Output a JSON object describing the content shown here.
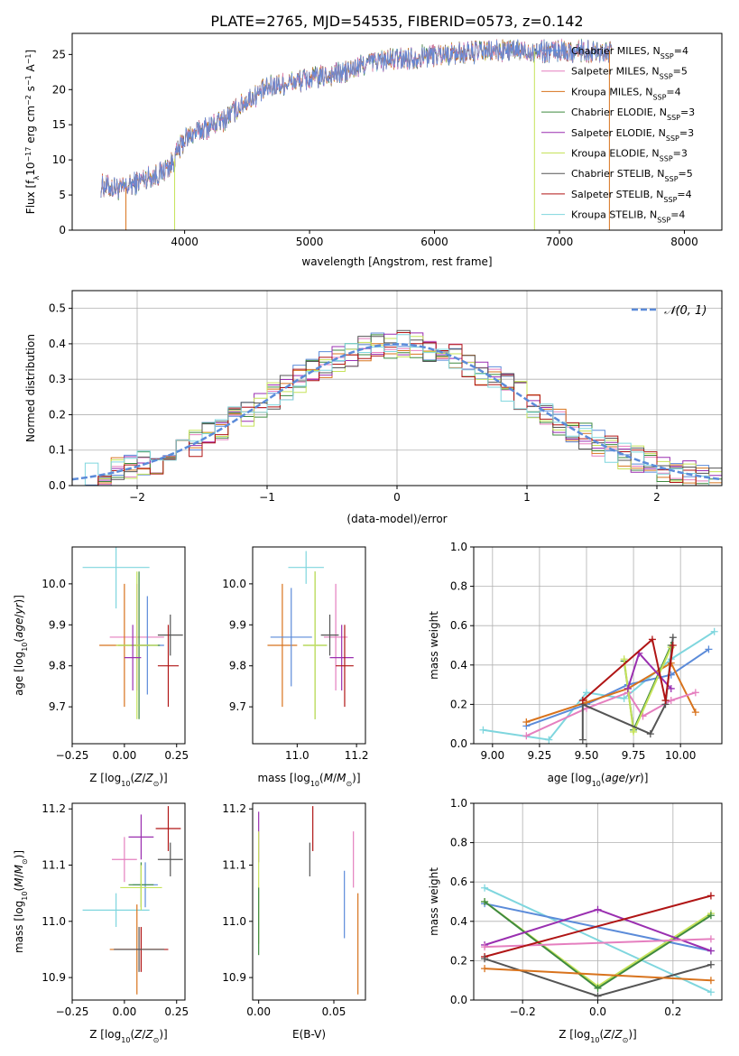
{
  "colors": {
    "Chabrier MILES": "#5b8bd9",
    "Salpeter MILES": "#e57fbf",
    "Kroupa MILES": "#d8731d",
    "Chabrier ELODIE": "#3f8a3f",
    "Salpeter ELODIE": "#9a2fb0",
    "Kroupa ELODIE": "#c6e35a",
    "Chabrier STELIB": "#555555",
    "Salpeter STELIB": "#b01515",
    "Kroupa STELIB": "#7fd6de",
    "normal": "#5b8bd9"
  },
  "chart_data": [
    {
      "id": "spectrum",
      "type": "line",
      "title": "PLATE=2765, MJD=54535, FIBERID=0573, z=0.142",
      "xlabel": "wavelength [Angstrom, rest frame]",
      "ylabel": "Flux [f_λ 10^-17 erg cm^-2 s^-1 A^-1]",
      "xlim": [
        3100,
        8300
      ],
      "ylim": [
        0,
        28
      ],
      "xticks": [
        4000,
        5000,
        6000,
        7000,
        8000
      ],
      "yticks": [
        0,
        5,
        10,
        15,
        20,
        25
      ],
      "legend_position": "top-right",
      "series": [
        {
          "name": "Chabrier MILES",
          "nssp": "4"
        },
        {
          "name": "Salpeter MILES",
          "nssp": "5"
        },
        {
          "name": "Kroupa MILES",
          "nssp": "4"
        },
        {
          "name": "Chabrier ELODIE",
          "nssp": "3"
        },
        {
          "name": "Salpeter ELODIE",
          "nssp": "3"
        },
        {
          "name": "Kroupa ELODIE",
          "nssp": "3"
        },
        {
          "name": "Chabrier STELIB",
          "nssp": "5"
        },
        {
          "name": "Salpeter STELIB",
          "nssp": "4"
        },
        {
          "name": "Kroupa STELIB",
          "nssp": "4"
        }
      ],
      "continuum": {
        "x": [
          3300,
          3500,
          3700,
          3800,
          3900,
          4000,
          4100,
          4300,
          4500,
          4700,
          5000,
          5300,
          5500,
          5800,
          6000,
          6500,
          7000,
          7400
        ],
        "y": [
          6.5,
          5.8,
          7.5,
          8.0,
          9.5,
          13.0,
          14.0,
          15.5,
          18.5,
          20.5,
          21.5,
          22.5,
          24.0,
          24.5,
          25.0,
          25.5,
          25.5,
          25.5
        ]
      }
    },
    {
      "id": "residuals",
      "type": "line",
      "xlabel": "(data-model)/error",
      "ylabel": "Normed distribution",
      "xlim": [
        -2.5,
        2.5
      ],
      "ylim": [
        0,
        0.55
      ],
      "xticks": [
        -2,
        -1,
        0,
        1,
        2
      ],
      "yticks": [
        0.0,
        0.1,
        0.2,
        0.3,
        0.4,
        0.5
      ],
      "grid": true,
      "legend_position": "top-right",
      "legend_label": "𝒩(0, 1)",
      "bin_width": 0.1,
      "bin_start": -2.5
    },
    {
      "id": "z-age",
      "type": "scatter",
      "xlabel": "Z [log10(Z/Z⊙)]",
      "ylabel": "age [log10(age/yr)]",
      "xlim": [
        -0.25,
        0.29
      ],
      "ylim": [
        9.61,
        10.09
      ],
      "xticks": [
        -0.25,
        0.0,
        0.25
      ],
      "yticks": [
        9.7,
        9.8,
        9.9,
        10.0
      ],
      "points": [
        {
          "model": "Kroupa STELIB",
          "x": -0.04,
          "y": 10.04,
          "xerr": 0.16,
          "yerr": 0.1
        },
        {
          "model": "Salpeter MILES",
          "x": 0.06,
          "y": 9.87,
          "xerr": 0.13,
          "yerr": 0.13
        },
        {
          "model": "Kroupa MILES",
          "x": 0.0,
          "y": 9.85,
          "xerr": 0.12,
          "yerr": 0.15
        },
        {
          "model": "Chabrier MILES",
          "x": 0.11,
          "y": 9.85,
          "xerr": 0.08,
          "yerr": 0.12
        },
        {
          "model": "Chabrier ELODIE",
          "x": 0.07,
          "y": 9.85,
          "xerr": 0.1,
          "yerr": 0.18
        },
        {
          "model": "Kroupa ELODIE",
          "x": 0.06,
          "y": 9.85,
          "xerr": 0.1,
          "yerr": 0.18
        },
        {
          "model": "Salpeter ELODIE",
          "x": 0.04,
          "y": 9.82,
          "xerr": 0.04,
          "yerr": 0.08
        },
        {
          "model": "Chabrier STELIB",
          "x": 0.22,
          "y": 9.875,
          "xerr": 0.06,
          "yerr": 0.05
        },
        {
          "model": "Salpeter STELIB",
          "x": 0.21,
          "y": 9.8,
          "xerr": 0.05,
          "yerr": 0.1
        }
      ]
    },
    {
      "id": "mass-age",
      "type": "scatter",
      "xlabel": "mass [log10(M/M⊙)]",
      "xlim": [
        10.85,
        11.23
      ],
      "ylim": [
        9.61,
        10.09
      ],
      "xticks": [
        11.0,
        11.2
      ],
      "yticks": [
        9.7,
        9.8,
        9.9,
        10.0
      ],
      "points": [
        {
          "model": "Kroupa STELIB",
          "x": 11.03,
          "y": 10.04,
          "xerr": 0.06,
          "yerr": 0.04
        },
        {
          "model": "Salpeter MILES",
          "x": 11.13,
          "y": 9.87,
          "xerr": 0.04,
          "yerr": 0.13
        },
        {
          "model": "Kroupa MILES",
          "x": 10.95,
          "y": 9.85,
          "xerr": 0.05,
          "yerr": 0.15
        },
        {
          "model": "Chabrier MILES",
          "x": 10.98,
          "y": 9.87,
          "xerr": 0.07,
          "yerr": 0.12
        },
        {
          "model": "Chabrier ELODIE",
          "x": 11.06,
          "y": 9.85,
          "xerr": 0.04,
          "yerr": 0.18
        },
        {
          "model": "Kroupa ELODIE",
          "x": 11.06,
          "y": 9.85,
          "xerr": 0.04,
          "yerr": 0.18
        },
        {
          "model": "Salpeter ELODIE",
          "x": 11.15,
          "y": 9.82,
          "xerr": 0.04,
          "yerr": 0.08
        },
        {
          "model": "Chabrier STELIB",
          "x": 11.11,
          "y": 9.875,
          "xerr": 0.03,
          "yerr": 0.05
        },
        {
          "model": "Salpeter STELIB",
          "x": 11.16,
          "y": 9.8,
          "xerr": 0.03,
          "yerr": 0.1
        }
      ]
    },
    {
      "id": "age-weight",
      "type": "line",
      "xlabel": "age [log10(age/yr)]",
      "ylabel": "mass weight",
      "xlim": [
        8.9,
        10.22
      ],
      "ylim": [
        0,
        1
      ],
      "xticks": [
        9.0,
        9.25,
        9.5,
        9.75,
        10.0
      ],
      "yticks": [
        0.0,
        0.2,
        0.4,
        0.6,
        0.8,
        1.0
      ],
      "grid": true,
      "series": [
        {
          "model": "Kroupa STELIB",
          "x": [
            8.95,
            9.3,
            9.5,
            9.7,
            9.95,
            10.18
          ],
          "y": [
            0.07,
            0.02,
            0.26,
            0.23,
            0.43,
            0.57
          ]
        },
        {
          "model": "Chabrier MILES",
          "x": [
            9.18,
            9.5,
            9.72,
            9.95,
            10.15
          ],
          "y": [
            0.09,
            0.2,
            0.3,
            0.35,
            0.48
          ]
        },
        {
          "model": "Kroupa MILES",
          "x": [
            9.18,
            9.5,
            9.72,
            9.95,
            10.08
          ],
          "y": [
            0.11,
            0.21,
            0.28,
            0.41,
            0.16
          ]
        },
        {
          "model": "Salpeter MILES",
          "x": [
            9.18,
            9.5,
            9.72,
            9.8,
            9.95,
            10.08
          ],
          "y": [
            0.04,
            0.18,
            0.26,
            0.14,
            0.22,
            0.26
          ]
        },
        {
          "model": "Chabrier ELODIE",
          "x": [
            9.7,
            9.75,
            9.95
          ],
          "y": [
            0.42,
            0.07,
            0.5
          ]
        },
        {
          "model": "Kroupa ELODIE",
          "x": [
            9.7,
            9.75,
            9.95
          ],
          "y": [
            0.43,
            0.06,
            0.49
          ]
        },
        {
          "model": "Salpeter ELODIE",
          "x": [
            9.72,
            9.78,
            9.95
          ],
          "y": [
            0.28,
            0.46,
            0.28
          ]
        },
        {
          "model": "Chabrier STELIB",
          "x": [
            9.48,
            9.48,
            9.84,
            9.92,
            9.96
          ],
          "y": [
            0.02,
            0.2,
            0.05,
            0.2,
            0.54
          ]
        },
        {
          "model": "Salpeter STELIB",
          "x": [
            9.48,
            9.85,
            9.92,
            9.96
          ],
          "y": [
            0.22,
            0.53,
            0.22,
            0.5
          ]
        }
      ]
    },
    {
      "id": "z-mass",
      "type": "scatter",
      "xlabel": "Z [log10(Z/Z⊙)]",
      "ylabel": "mass [log10(M/M⊙)]",
      "xlim": [
        -0.25,
        0.29
      ],
      "ylim": [
        10.86,
        11.21
      ],
      "xticks": [
        -0.25,
        0.0,
        0.25
      ],
      "yticks": [
        10.9,
        11.0,
        11.1,
        11.2
      ],
      "points": [
        {
          "model": "Kroupa STELIB",
          "x": -0.04,
          "y": 11.02,
          "xerr": 0.16,
          "yerr": 0.03
        },
        {
          "model": "Salpeter MILES",
          "x": 0.0,
          "y": 11.11,
          "xerr": 0.06,
          "yerr": 0.04
        },
        {
          "model": "Salpeter ELODIE",
          "x": 0.08,
          "y": 11.15,
          "xerr": 0.06,
          "yerr": 0.04
        },
        {
          "model": "Chabrier MILES",
          "x": 0.1,
          "y": 11.065,
          "xerr": 0.06,
          "yerr": 0.04
        },
        {
          "model": "Chabrier ELODIE",
          "x": 0.08,
          "y": 11.065,
          "xerr": 0.06,
          "yerr": 0.04
        },
        {
          "model": "Kroupa ELODIE",
          "x": 0.08,
          "y": 11.06,
          "xerr": 0.1,
          "yerr": 0.04
        },
        {
          "model": "Kroupa MILES",
          "x": 0.06,
          "y": 10.95,
          "xerr": 0.13,
          "yerr": 0.08
        },
        {
          "model": "Chabrier STELIB",
          "x": 0.22,
          "y": 11.11,
          "xerr": 0.06,
          "yerr": 0.03
        },
        {
          "model": "Salpeter STELIB",
          "x": 0.21,
          "y": 11.165,
          "xerr": 0.06,
          "yerr": 0.04
        },
        {
          "model": "Salpeter STELIB",
          "x": 0.08,
          "y": 10.95,
          "xerr": 0.13,
          "yerr": 0.04
        },
        {
          "model": "Chabrier STELIB",
          "x": 0.07,
          "y": 10.95,
          "xerr": 0.12,
          "yerr": 0.04
        }
      ]
    },
    {
      "id": "ebv-mass",
      "type": "scatter",
      "xlabel": "E(B-V)",
      "xlim": [
        -0.004,
        0.071
      ],
      "ylim": [
        10.86,
        11.21
      ],
      "xticks": [
        0.0,
        0.05
      ],
      "yticks": [
        10.9,
        11.0,
        11.1,
        11.2
      ],
      "points": [
        {
          "model": "Salpeter ELODIE",
          "x": 0.0,
          "y": 11.15,
          "xerr": 0,
          "yerr": 0.045
        },
        {
          "model": "Kroupa ELODIE",
          "x": 0.0,
          "y": 11.06,
          "xerr": 0,
          "yerr": 0.1
        },
        {
          "model": "Chabrier ELODIE",
          "x": 0.0,
          "y": 11.0,
          "xerr": 0,
          "yerr": 0.06
        },
        {
          "model": "Chabrier STELIB",
          "x": 0.034,
          "y": 11.11,
          "xerr": 0,
          "yerr": 0.03
        },
        {
          "model": "Salpeter STELIB",
          "x": 0.036,
          "y": 11.165,
          "xerr": 0,
          "yerr": 0.04
        },
        {
          "model": "Chabrier MILES",
          "x": 0.057,
          "y": 11.03,
          "xerr": 0,
          "yerr": 0.06
        },
        {
          "model": "Salpeter MILES",
          "x": 0.063,
          "y": 11.11,
          "xerr": 0,
          "yerr": 0.05
        },
        {
          "model": "Kroupa MILES",
          "x": 0.066,
          "y": 10.96,
          "xerr": 0,
          "yerr": 0.09
        }
      ]
    },
    {
      "id": "z-weight",
      "type": "line",
      "xlabel": "Z [log10(Z/Z⊙)]",
      "ylabel": "mass weight",
      "xlim": [
        -0.33,
        0.33
      ],
      "ylim": [
        0,
        1
      ],
      "xticks": [
        -0.2,
        0.0,
        0.2
      ],
      "yticks": [
        0.0,
        0.2,
        0.4,
        0.6,
        0.8,
        1.0
      ],
      "grid": true,
      "series": [
        {
          "model": "Kroupa STELIB",
          "x": [
            -0.301,
            0.301
          ],
          "y": [
            0.57,
            0.04
          ]
        },
        {
          "model": "Chabrier MILES",
          "x": [
            -0.301,
            0.301
          ],
          "y": [
            0.49,
            0.25
          ]
        },
        {
          "model": "Kroupa ELODIE",
          "x": [
            -0.301,
            0.0,
            0.301
          ],
          "y": [
            0.5,
            0.07,
            0.44
          ]
        },
        {
          "model": "Chabrier ELODIE",
          "x": [
            -0.301,
            0.0,
            0.301
          ],
          "y": [
            0.5,
            0.06,
            0.43
          ]
        },
        {
          "model": "Salpeter ELODIE",
          "x": [
            -0.301,
            0.0,
            0.301
          ],
          "y": [
            0.28,
            0.46,
            0.25
          ]
        },
        {
          "model": "Salpeter MILES",
          "x": [
            -0.301,
            0.301
          ],
          "y": [
            0.27,
            0.31
          ]
        },
        {
          "model": "Salpeter STELIB",
          "x": [
            -0.301,
            0.301
          ],
          "y": [
            0.22,
            0.53
          ]
        },
        {
          "model": "Chabrier STELIB",
          "x": [
            -0.301,
            0.0,
            0.301
          ],
          "y": [
            0.21,
            0.02,
            0.18
          ]
        },
        {
          "model": "Kroupa MILES",
          "x": [
            -0.301,
            0.301
          ],
          "y": [
            0.16,
            0.1
          ]
        }
      ]
    }
  ]
}
